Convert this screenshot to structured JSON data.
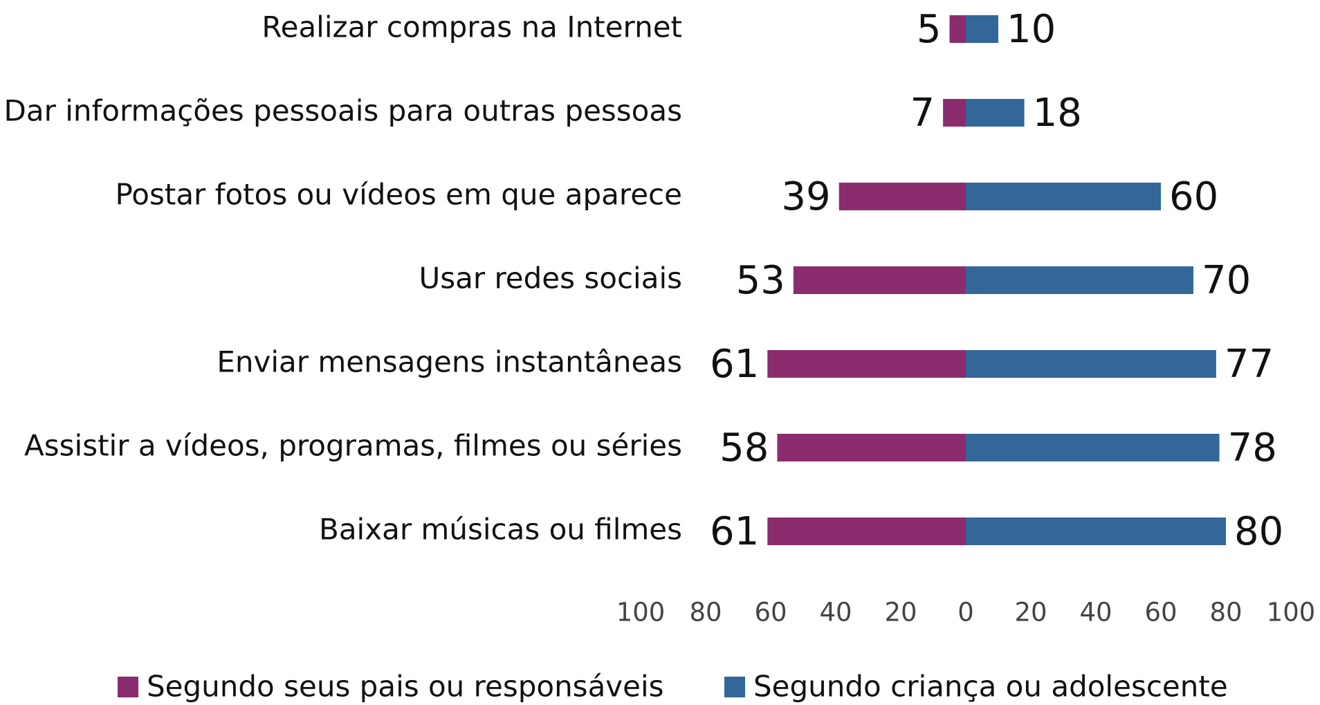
{
  "chart_data": {
    "type": "diverging_bar",
    "categories": [
      "Realizar compras na Internet",
      "Dar informações pessoais para outras pessoas",
      "Postar fotos ou vídeos em que aparece",
      "Usar redes sociais",
      "Enviar mensagens instantâneas",
      "Assistir a vídeos, programas, filmes ou séries",
      "Baixar músicas ou filmes"
    ],
    "series": [
      {
        "name": "Segundo seus pais ou responsáveis",
        "color": "#8b2c6e",
        "values": [
          -5,
          -7,
          -39,
          -53,
          -61,
          -58,
          -61
        ],
        "value_labels": [
          "5",
          "7",
          "39",
          "53",
          "61",
          "58",
          "61"
        ]
      },
      {
        "name": "Segundo criança ou adolescente",
        "color": "#33679a",
        "values": [
          10,
          18,
          60,
          70,
          77,
          78,
          80
        ]
      }
    ],
    "xlim": [
      -100,
      100
    ],
    "xticks": [
      {
        "value": -100,
        "label": "100"
      },
      {
        "value": -80,
        "label": "80"
      },
      {
        "value": -60,
        "label": "60"
      },
      {
        "value": -40,
        "label": "40"
      },
      {
        "value": -20,
        "label": "20"
      },
      0,
      20,
      40,
      60,
      80,
      100
    ]
  }
}
